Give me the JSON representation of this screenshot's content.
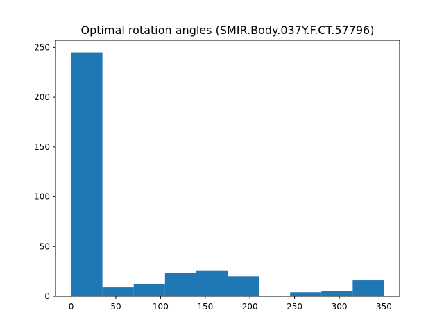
{
  "chart_data": {
    "type": "bar",
    "title": "Optimal rotation angles (SMIR.Body.037Y.F.CT.57796)",
    "xlabel": "",
    "ylabel": "",
    "bin_edges": [
      0,
      35,
      70,
      105,
      140,
      175,
      210,
      245,
      280,
      315,
      350
    ],
    "values": [
      245,
      9,
      12,
      23,
      26,
      20,
      0,
      4,
      5,
      16
    ],
    "xlim": [
      -17.5,
      367.5
    ],
    "ylim": [
      0,
      257.25
    ],
    "xticks": [
      0,
      50,
      100,
      150,
      200,
      250,
      300,
      350
    ],
    "yticks": [
      0,
      50,
      100,
      150,
      200,
      250
    ],
    "bar_color": "#1f77b4",
    "grid": false,
    "legend": "none"
  }
}
